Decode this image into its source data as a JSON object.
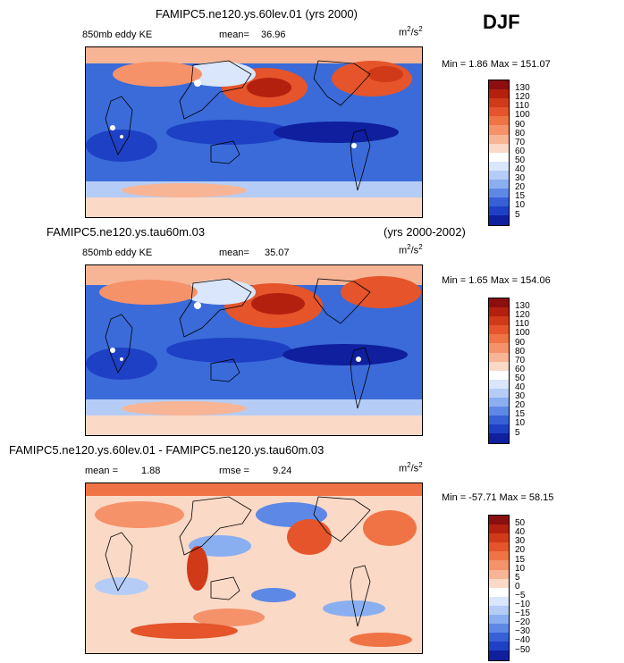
{
  "season": "DJF",
  "panels": [
    {
      "title": "FAMIPC5.ne120.ys.60lev.01 (yrs 2000)",
      "title_right": "",
      "field": "850mb eddy KE",
      "stat_label": "mean=",
      "stat_value": "36.96",
      "stat2_label": "",
      "stat2_value": "",
      "units_base": "m",
      "units_exp1": "2",
      "units_mid": "/s",
      "units_exp2": "2",
      "minmax": "Min =   1.86 Max = 151.07",
      "levels": [
        "130",
        "120",
        "110",
        "100",
        "90",
        "80",
        "70",
        "60",
        "50",
        "40",
        "30",
        "20",
        "15",
        "10",
        "5"
      ],
      "colors": [
        "#8b0f0f",
        "#b3200e",
        "#d13a18",
        "#e5542a",
        "#f07345",
        "#f5926a",
        "#f7b596",
        "#fad9c6",
        "#ffffff",
        "#d9e6fb",
        "#b5cdf6",
        "#8aaff0",
        "#5d88e6",
        "#3760d7",
        "#1e40c4",
        "#0f1f9e"
      ]
    },
    {
      "title": "FAMIPC5.ne120.ys.tau60m.03",
      "title_right": "(yrs 2000-2002)",
      "field": "850mb eddy KE",
      "stat_label": "mean=",
      "stat_value": "35.07",
      "stat2_label": "",
      "stat2_value": "",
      "units_base": "m",
      "units_exp1": "2",
      "units_mid": "/s",
      "units_exp2": "2",
      "minmax": "Min =   1.65 Max = 154.06",
      "levels": [
        "130",
        "120",
        "110",
        "100",
        "90",
        "80",
        "70",
        "60",
        "50",
        "40",
        "30",
        "20",
        "15",
        "10",
        "5"
      ],
      "colors": [
        "#8b0f0f",
        "#b3200e",
        "#d13a18",
        "#e5542a",
        "#f07345",
        "#f5926a",
        "#f7b596",
        "#fad9c6",
        "#ffffff",
        "#d9e6fb",
        "#b5cdf6",
        "#8aaff0",
        "#5d88e6",
        "#3760d7",
        "#1e40c4",
        "#0f1f9e"
      ]
    },
    {
      "title": "FAMIPC5.ne120.ys.60lev.01 - FAMIPC5.ne120.ys.tau60m.03",
      "title_right": "",
      "field": "",
      "stat_label": "mean =",
      "stat_value": "1.88",
      "stat2_label": "rmse =",
      "stat2_value": "9.24",
      "units_base": "m",
      "units_exp1": "2",
      "units_mid": "/s",
      "units_exp2": "2",
      "minmax": "Min = -57.71 Max =  58.15",
      "levels": [
        "50",
        "40",
        "30",
        "20",
        "15",
        "10",
        "5",
        "0",
        "−5",
        "−10",
        "−15",
        "−20",
        "−30",
        "−40",
        "−50"
      ],
      "colors": [
        "#8b0f0f",
        "#b3200e",
        "#d13a18",
        "#e5542a",
        "#f07345",
        "#f5926a",
        "#f7b596",
        "#fad9c6",
        "#ffffff",
        "#d9e6fb",
        "#b5cdf6",
        "#8aaff0",
        "#5d88e6",
        "#3760d7",
        "#1e40c4",
        "#0f1f9e"
      ]
    }
  ]
}
